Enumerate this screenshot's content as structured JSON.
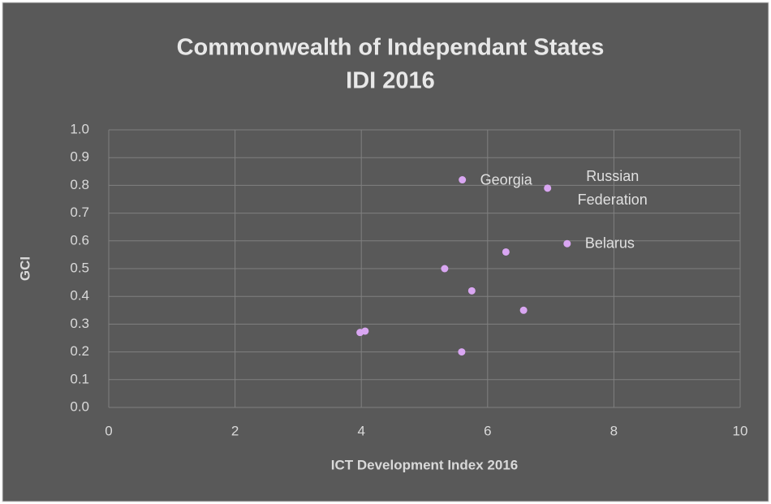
{
  "chart_data": {
    "type": "scatter",
    "title": [
      "Commonwealth of Independant States",
      "IDI 2016"
    ],
    "x_label": "ICT Development Index 2016",
    "y_label": "GCI",
    "x": [
      5.6,
      6.95,
      7.26,
      6.29,
      5.32,
      5.75,
      6.57,
      3.98,
      4.06,
      5.59
    ],
    "values": [
      0.82,
      0.79,
      0.59,
      0.56,
      0.5,
      0.42,
      0.35,
      0.27,
      0.275,
      0.2
    ],
    "labels": [
      "Georgia",
      "Russian Federation",
      "Belarus",
      null,
      null,
      null,
      null,
      null,
      null,
      null
    ],
    "color": "#d9a6f2",
    "xlim": [
      0,
      10
    ],
    "xticks": [
      0,
      2,
      4,
      6,
      8,
      10
    ],
    "ylim": [
      0,
      1
    ],
    "yticks": [
      {
        "value": 0,
        "label": "0.0"
      },
      0.1,
      0.2,
      0.3,
      0.4,
      0.5,
      0.6,
      0.7,
      0.8,
      0.9,
      {
        "value": 1,
        "label": "1.0"
      }
    ],
    "grid": true
  }
}
